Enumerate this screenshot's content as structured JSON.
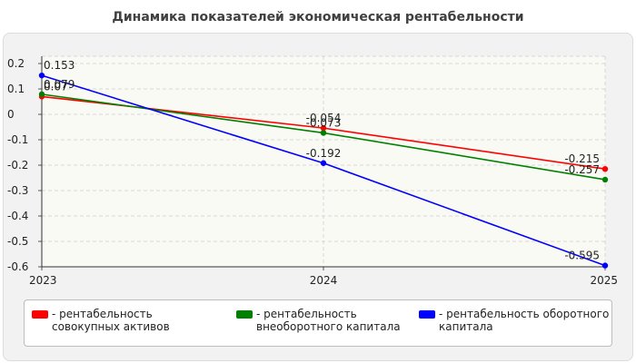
{
  "chart_data": {
    "type": "line",
    "title": "Динамика показателей экономическая рентабельности",
    "categories": [
      "2023",
      "2024",
      "2025"
    ],
    "y_ticks": [
      "0.2",
      "0.1",
      "0",
      "-0.1",
      "-0.2",
      "-0.3",
      "-0.4",
      "-0.5",
      "-0.6"
    ],
    "ylim": [
      -0.6,
      0.2
    ],
    "grid": true,
    "legend_position": "bottom",
    "series": [
      {
        "name": "рентабельность совокупных активов",
        "legend_label": "- рентабельность совокупных активов",
        "color": "#ff0000",
        "values": [
          0.07,
          -0.054,
          -0.215
        ],
        "labels": [
          "0.07",
          "-0.054",
          "-0.215"
        ]
      },
      {
        "name": "рентабельность внеоборотного капитала",
        "legend_label": "- рентабельность внеоборотного капитала",
        "color": "#008000",
        "values": [
          0.079,
          -0.073,
          -0.257
        ],
        "labels": [
          "0.079",
          "-0.073",
          "-0.257"
        ]
      },
      {
        "name": "рентабельность оборотного капитала",
        "legend_label": "- рентабельность оборотного капитала",
        "color": "#0000ff",
        "values": [
          0.153,
          -0.192,
          -0.595
        ],
        "labels": [
          "0.153",
          "-0.192",
          "-0.595"
        ]
      }
    ]
  }
}
